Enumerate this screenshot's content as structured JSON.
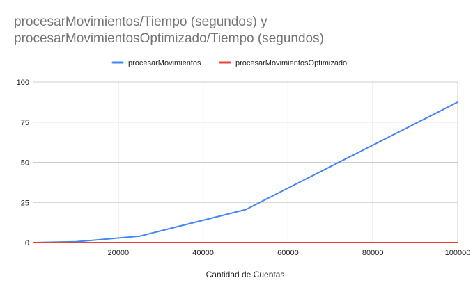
{
  "chart_data": {
    "type": "line",
    "title": [
      "procesarMovimientos/Tiempo (segundos) y",
      "procesarMovimientosOptimizado/Tiempo (segundos)"
    ],
    "xlabel": "Cantidad de Cuentas",
    "ylabel": "",
    "xlim": [
      0,
      100000
    ],
    "ylim": [
      0,
      100
    ],
    "x_ticks": [
      20000,
      40000,
      60000,
      80000,
      100000
    ],
    "y_ticks": [
      0,
      25,
      50,
      75,
      100
    ],
    "grid": true,
    "legend_position": "top",
    "series": [
      {
        "name": "procesarMovimientos",
        "color": "#4285f4",
        "x": [
          0,
          10000,
          25000,
          50000,
          100000
        ],
        "y": [
          0,
          0.5,
          4,
          20.5,
          87.5
        ]
      },
      {
        "name": "procesarMovimientosOptimizado",
        "color": "#ea4335",
        "x": [
          0,
          10000,
          25000,
          50000,
          100000
        ],
        "y": [
          0,
          0,
          0,
          0,
          0
        ]
      }
    ]
  }
}
